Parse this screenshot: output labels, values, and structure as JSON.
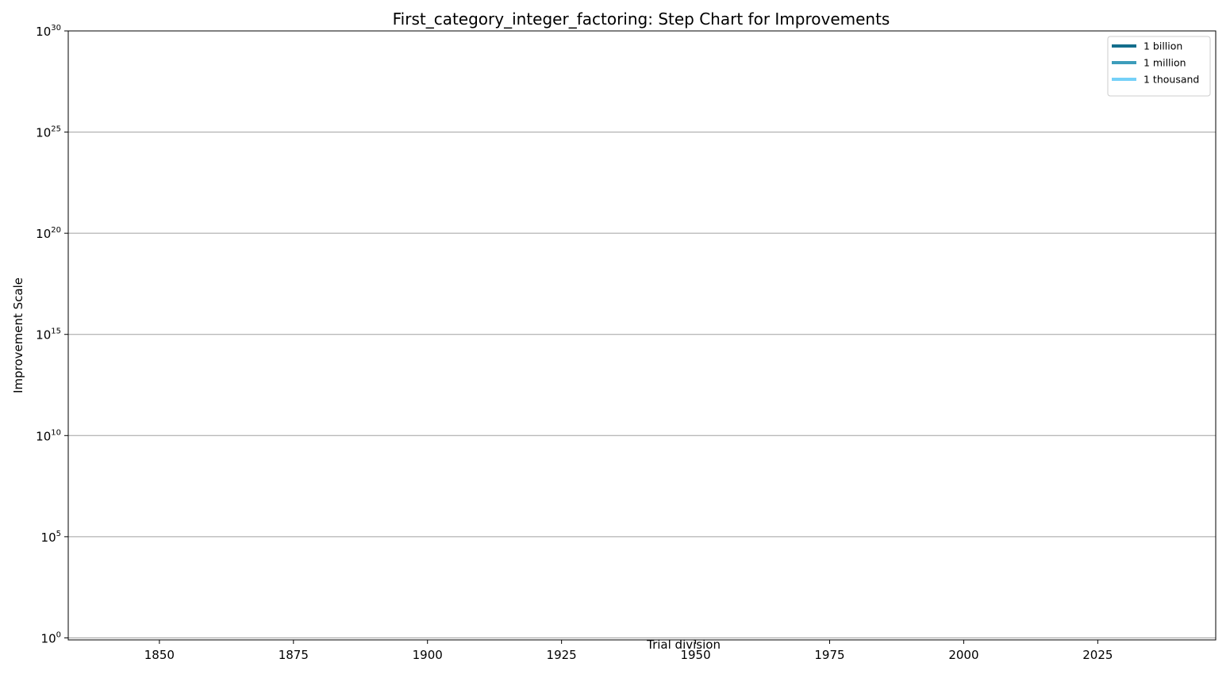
{
  "chart_data": {
    "type": "line",
    "title": "First_category_integer_factoring: Step Chart for Improvements",
    "xlabel": "",
    "ylabel": "Improvement Scale",
    "annotation": "Trial division",
    "annotation_x": 1950,
    "yscale": "log",
    "xlim": [
      1833,
      2047
    ],
    "ylim_exponent": [
      -0.1,
      30
    ],
    "x_ticks": [
      1850,
      1875,
      1900,
      1925,
      1950,
      1975,
      2000,
      2025
    ],
    "y_tick_base": "10",
    "y_tick_exponents": [
      0,
      5,
      10,
      15,
      20,
      25,
      30
    ],
    "grid": "y",
    "legend_position": "top-right",
    "series": [
      {
        "name": "1 billion",
        "color": "#136e8c",
        "points": []
      },
      {
        "name": "1 million",
        "color": "#3d9dbb",
        "points": []
      },
      {
        "name": "1 thousand",
        "color": "#75d1f8",
        "points": []
      }
    ]
  }
}
